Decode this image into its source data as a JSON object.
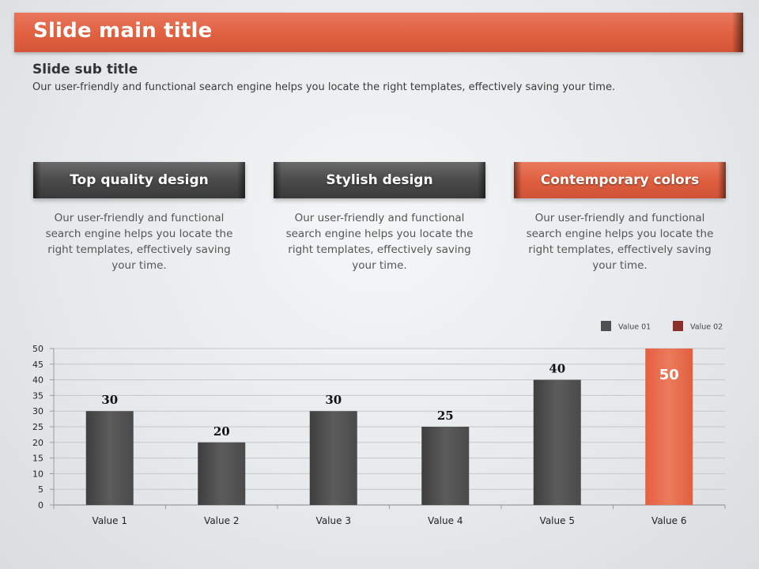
{
  "slide": {
    "title": "Slide main title",
    "subtitle": "Slide sub title",
    "subtext": "Our user-friendly and functional search engine helps you locate the right templates, effectively saving your time."
  },
  "features": [
    {
      "title": "Top quality design",
      "text": "Our user-friendly and functional search engine helps you locate the right templates, effectively saving your time.",
      "accent": false
    },
    {
      "title": "Stylish design",
      "text": "Our user-friendly and functional search engine helps you locate the right templates, effectively saving your time.",
      "accent": false
    },
    {
      "title": "Contemporary colors",
      "text": "Our user-friendly and functional search engine helps you locate the right templates, effectively saving your time.",
      "accent": true
    }
  ],
  "colors": {
    "accent": "#e0603f",
    "dark": "#505050",
    "legend_value_02": "#8b2f2b"
  },
  "chart_data": {
    "type": "bar",
    "categories": [
      "Value 1",
      "Value 2",
      "Value 3",
      "Value 4",
      "Value 5",
      "Value 6"
    ],
    "series": [
      {
        "name": "Value 01",
        "values": [
          30,
          20,
          30,
          25,
          40,
          null
        ]
      },
      {
        "name": "Value 02",
        "values": [
          null,
          null,
          null,
          null,
          null,
          50
        ]
      }
    ],
    "ylim": [
      0,
      50
    ],
    "yticks": [
      0,
      5,
      10,
      15,
      20,
      25,
      30,
      35,
      40,
      45,
      50
    ],
    "grid": true,
    "legend_position": "top-right",
    "data_labels": true
  }
}
